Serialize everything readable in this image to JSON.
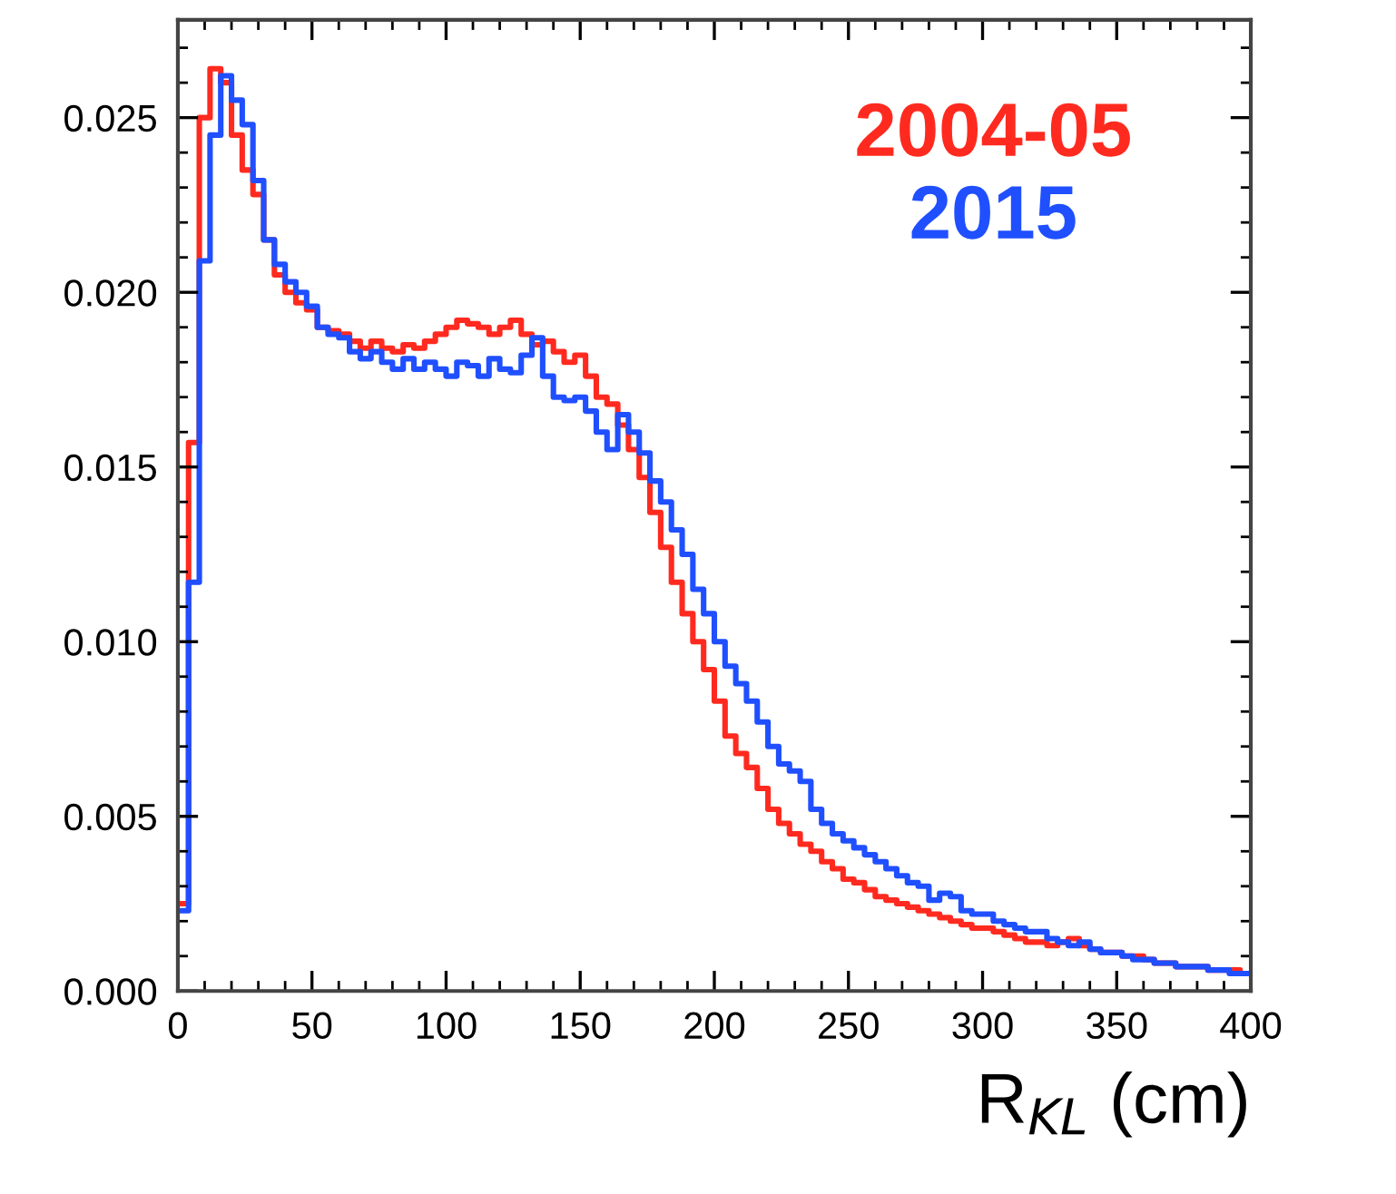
{
  "chart_data": {
    "type": "histogram",
    "xlabel": "R$_{KL}$ (cm)",
    "bins": [
      0,
      4,
      8,
      12,
      16,
      20,
      24,
      28,
      32,
      36,
      40,
      44,
      48,
      52,
      56,
      60,
      64,
      68,
      72,
      76,
      80,
      84,
      88,
      92,
      96,
      100,
      104,
      108,
      112,
      116,
      120,
      124,
      128,
      132,
      136,
      140,
      144,
      148,
      152,
      156,
      160,
      164,
      168,
      172,
      176,
      180,
      184,
      188,
      192,
      196,
      200,
      204,
      208,
      212,
      216,
      220,
      224,
      228,
      232,
      236,
      240,
      244,
      248,
      252,
      256,
      260,
      264,
      268,
      272,
      276,
      280,
      284,
      288,
      292,
      296,
      300,
      304,
      308,
      312,
      316,
      320,
      324,
      328,
      332,
      336,
      340,
      344,
      348,
      352,
      356,
      360,
      364,
      368,
      372,
      376,
      380,
      384,
      388,
      392,
      396,
      400
    ],
    "series": [
      {
        "name": "2004-05",
        "color": "#ff2a1f",
        "values": [
          0.0025,
          0.0157,
          0.025,
          0.0264,
          0.026,
          0.0245,
          0.0235,
          0.0228,
          0.0215,
          0.0205,
          0.02,
          0.0197,
          0.0195,
          0.019,
          0.0189,
          0.0188,
          0.0186,
          0.0184,
          0.0186,
          0.0184,
          0.0183,
          0.0185,
          0.0184,
          0.0186,
          0.0188,
          0.019,
          0.0192,
          0.0191,
          0.019,
          0.0188,
          0.019,
          0.0192,
          0.0188,
          0.0185,
          0.0186,
          0.0183,
          0.018,
          0.0182,
          0.0176,
          0.017,
          0.0168,
          0.0162,
          0.0155,
          0.0147,
          0.0137,
          0.0127,
          0.0117,
          0.0108,
          0.01,
          0.0092,
          0.0083,
          0.0073,
          0.0068,
          0.0064,
          0.0058,
          0.0052,
          0.0048,
          0.0045,
          0.0042,
          0.004,
          0.0037,
          0.0035,
          0.0032,
          0.0031,
          0.0029,
          0.0027,
          0.0026,
          0.0025,
          0.0024,
          0.0023,
          0.0022,
          0.0021,
          0.002,
          0.0019,
          0.0018,
          0.0018,
          0.0017,
          0.0016,
          0.0015,
          0.0014,
          0.0014,
          0.0013,
          0.0014,
          0.0015,
          0.0013,
          0.0012,
          0.0011,
          0.0011,
          0.001,
          0.001,
          0.0009,
          0.0008,
          0.0008,
          0.0007,
          0.0007,
          0.0007,
          0.0006,
          0.0006,
          0.0006,
          0.0005
        ]
      },
      {
        "name": "2015",
        "color": "#1f4fff",
        "values": [
          0.0023,
          0.0117,
          0.0209,
          0.0245,
          0.0262,
          0.0255,
          0.0248,
          0.0232,
          0.0215,
          0.0208,
          0.0203,
          0.02,
          0.0196,
          0.019,
          0.0188,
          0.0187,
          0.0183,
          0.0181,
          0.0183,
          0.018,
          0.0178,
          0.0181,
          0.0178,
          0.018,
          0.0178,
          0.0176,
          0.018,
          0.0179,
          0.0176,
          0.0181,
          0.0178,
          0.0177,
          0.0182,
          0.0187,
          0.0176,
          0.017,
          0.0169,
          0.017,
          0.0166,
          0.016,
          0.0155,
          0.0165,
          0.016,
          0.0154,
          0.0146,
          0.014,
          0.0132,
          0.0125,
          0.0115,
          0.0108,
          0.01,
          0.0093,
          0.0088,
          0.0083,
          0.0077,
          0.007,
          0.0065,
          0.0063,
          0.006,
          0.0052,
          0.0048,
          0.0045,
          0.0043,
          0.0041,
          0.0039,
          0.0037,
          0.0035,
          0.0033,
          0.0031,
          0.003,
          0.0026,
          0.0028,
          0.0027,
          0.0023,
          0.0022,
          0.0022,
          0.002,
          0.0019,
          0.0018,
          0.0017,
          0.0017,
          0.0015,
          0.0014,
          0.0013,
          0.0014,
          0.0012,
          0.0011,
          0.0011,
          0.001,
          0.0009,
          0.0009,
          0.0008,
          0.0008,
          0.0007,
          0.0007,
          0.0007,
          0.0006,
          0.0006,
          0.0005,
          0.0005
        ]
      }
    ],
    "xlim": [
      0,
      400
    ],
    "xticks": [
      0,
      50,
      100,
      150,
      200,
      250,
      300,
      350,
      400
    ],
    "ylim": [
      0,
      0.0278
    ],
    "yticks": [
      {
        "value": 0,
        "label": "0.000"
      },
      {
        "value": 0.005,
        "label": "0.005"
      },
      {
        "value": 0.01,
        "label": "0.010"
      },
      {
        "value": 0.015,
        "label": "0.015"
      },
      {
        "value": 0.02,
        "label": "0.020"
      },
      {
        "value": 0.025,
        "label": "0.025"
      }
    ],
    "grid": false,
    "legend": "top right"
  }
}
